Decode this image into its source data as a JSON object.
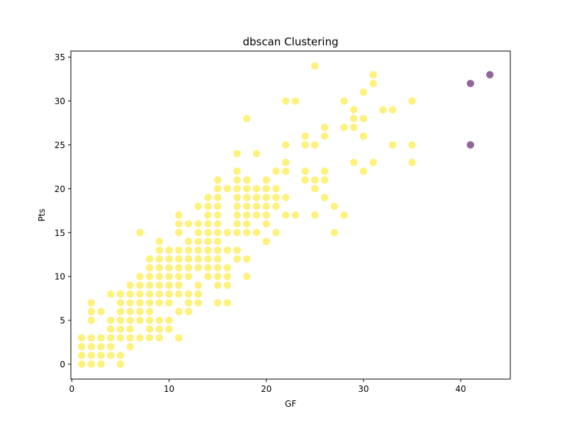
{
  "chart_data": {
    "type": "scatter",
    "title": "dbscan Clustering",
    "xlabel": "GF",
    "ylabel": "Pts",
    "xlim": [
      -0.1,
      45.1
    ],
    "ylim": [
      -1.7,
      35.7
    ],
    "xticks": [
      0,
      10,
      20,
      30,
      40
    ],
    "yticks": [
      0,
      5,
      10,
      15,
      20,
      25,
      30,
      35
    ],
    "grid": false,
    "legend": "none",
    "colors": {
      "cluster": "#fde725",
      "noise": "#440154"
    },
    "series": [
      {
        "cluster": 0,
        "points": [
          [
            1,
            0
          ],
          [
            1,
            1
          ],
          [
            1,
            2
          ],
          [
            1,
            3
          ],
          [
            2,
            0
          ],
          [
            2,
            1
          ],
          [
            2,
            2
          ],
          [
            2,
            3
          ],
          [
            2,
            5
          ],
          [
            2,
            6
          ],
          [
            2,
            7
          ],
          [
            3,
            0
          ],
          [
            3,
            1
          ],
          [
            3,
            2
          ],
          [
            3,
            3
          ],
          [
            3,
            6
          ],
          [
            4,
            1
          ],
          [
            4,
            2
          ],
          [
            4,
            3
          ],
          [
            4,
            4
          ],
          [
            4,
            5
          ],
          [
            4,
            8
          ],
          [
            5,
            0
          ],
          [
            5,
            1
          ],
          [
            5,
            3
          ],
          [
            5,
            4
          ],
          [
            5,
            5
          ],
          [
            5,
            6
          ],
          [
            5,
            7
          ],
          [
            5,
            8
          ],
          [
            6,
            2
          ],
          [
            6,
            3
          ],
          [
            6,
            4
          ],
          [
            6,
            5
          ],
          [
            6,
            6
          ],
          [
            6,
            7
          ],
          [
            6,
            8
          ],
          [
            6,
            9
          ],
          [
            7,
            3
          ],
          [
            7,
            5
          ],
          [
            7,
            6
          ],
          [
            7,
            7
          ],
          [
            7,
            8
          ],
          [
            7,
            9
          ],
          [
            7,
            10
          ],
          [
            7,
            15
          ],
          [
            8,
            3
          ],
          [
            8,
            4
          ],
          [
            8,
            5
          ],
          [
            8,
            6
          ],
          [
            8,
            7
          ],
          [
            8,
            8
          ],
          [
            8,
            9
          ],
          [
            8,
            10
          ],
          [
            8,
            11
          ],
          [
            8,
            12
          ],
          [
            9,
            3
          ],
          [
            9,
            4
          ],
          [
            9,
            5
          ],
          [
            9,
            7
          ],
          [
            9,
            8
          ],
          [
            9,
            9
          ],
          [
            9,
            10
          ],
          [
            9,
            11
          ],
          [
            9,
            12
          ],
          [
            9,
            13
          ],
          [
            9,
            14
          ],
          [
            10,
            4
          ],
          [
            10,
            5
          ],
          [
            10,
            7
          ],
          [
            10,
            8
          ],
          [
            10,
            9
          ],
          [
            10,
            10
          ],
          [
            10,
            11
          ],
          [
            10,
            12
          ],
          [
            10,
            13
          ],
          [
            11,
            3
          ],
          [
            11,
            6
          ],
          [
            11,
            8
          ],
          [
            11,
            9
          ],
          [
            11,
            10
          ],
          [
            11,
            11
          ],
          [
            11,
            12
          ],
          [
            11,
            13
          ],
          [
            11,
            15
          ],
          [
            11,
            16
          ],
          [
            11,
            17
          ],
          [
            12,
            6
          ],
          [
            12,
            7
          ],
          [
            12,
            8
          ],
          [
            12,
            10
          ],
          [
            12,
            11
          ],
          [
            12,
            12
          ],
          [
            12,
            13
          ],
          [
            12,
            14
          ],
          [
            12,
            16
          ],
          [
            13,
            7
          ],
          [
            13,
            8
          ],
          [
            13,
            9
          ],
          [
            13,
            11
          ],
          [
            13,
            12
          ],
          [
            13,
            13
          ],
          [
            13,
            14
          ],
          [
            13,
            15
          ],
          [
            13,
            16
          ],
          [
            13,
            18
          ],
          [
            14,
            10
          ],
          [
            14,
            11
          ],
          [
            14,
            12
          ],
          [
            14,
            13
          ],
          [
            14,
            14
          ],
          [
            14,
            15
          ],
          [
            14,
            16
          ],
          [
            14,
            17
          ],
          [
            14,
            18
          ],
          [
            14,
            19
          ],
          [
            15,
            7
          ],
          [
            15,
            9
          ],
          [
            15,
            10
          ],
          [
            15,
            11
          ],
          [
            15,
            12
          ],
          [
            15,
            13
          ],
          [
            15,
            14
          ],
          [
            15,
            15
          ],
          [
            15,
            16
          ],
          [
            15,
            17
          ],
          [
            15,
            18
          ],
          [
            15,
            19
          ],
          [
            15,
            20
          ],
          [
            15,
            21
          ],
          [
            16,
            7
          ],
          [
            16,
            9
          ],
          [
            16,
            10
          ],
          [
            16,
            11
          ],
          [
            16,
            13
          ],
          [
            16,
            15
          ],
          [
            16,
            20
          ],
          [
            17,
            12
          ],
          [
            17,
            13
          ],
          [
            17,
            15
          ],
          [
            17,
            16
          ],
          [
            17,
            17
          ],
          [
            17,
            18
          ],
          [
            17,
            19
          ],
          [
            17,
            20
          ],
          [
            17,
            21
          ],
          [
            17,
            22
          ],
          [
            17,
            24
          ],
          [
            18,
            10
          ],
          [
            18,
            12
          ],
          [
            18,
            15
          ],
          [
            18,
            16
          ],
          [
            18,
            17
          ],
          [
            18,
            18
          ],
          [
            18,
            19
          ],
          [
            18,
            20
          ],
          [
            18,
            21
          ],
          [
            18,
            28
          ],
          [
            19,
            15
          ],
          [
            19,
            17
          ],
          [
            19,
            18
          ],
          [
            19,
            19
          ],
          [
            19,
            20
          ],
          [
            19,
            24
          ],
          [
            20,
            14
          ],
          [
            20,
            16
          ],
          [
            20,
            17
          ],
          [
            20,
            18
          ],
          [
            20,
            19
          ],
          [
            20,
            20
          ],
          [
            20,
            21
          ],
          [
            21,
            15
          ],
          [
            21,
            18
          ],
          [
            21,
            19
          ],
          [
            21,
            20
          ],
          [
            21,
            22
          ],
          [
            22,
            17
          ],
          [
            22,
            19
          ],
          [
            22,
            22
          ],
          [
            22,
            23
          ],
          [
            22,
            25
          ],
          [
            22,
            30
          ],
          [
            23,
            17
          ],
          [
            23,
            30
          ],
          [
            24,
            21
          ],
          [
            24,
            22
          ],
          [
            24,
            25
          ],
          [
            24,
            26
          ],
          [
            25,
            17
          ],
          [
            25,
            20
          ],
          [
            25,
            21
          ],
          [
            25,
            25
          ],
          [
            25,
            34
          ],
          [
            26,
            19
          ],
          [
            26,
            21
          ],
          [
            26,
            22
          ],
          [
            26,
            26
          ],
          [
            26,
            27
          ],
          [
            27,
            15
          ],
          [
            27,
            18
          ],
          [
            28,
            17
          ],
          [
            28,
            27
          ],
          [
            28,
            30
          ],
          [
            29,
            23
          ],
          [
            29,
            27
          ],
          [
            29,
            28
          ],
          [
            29,
            29
          ],
          [
            30,
            22
          ],
          [
            30,
            26
          ],
          [
            30,
            28
          ],
          [
            30,
            31
          ],
          [
            31,
            23
          ],
          [
            31,
            32
          ],
          [
            31,
            33
          ],
          [
            32,
            29
          ],
          [
            33,
            25
          ],
          [
            33,
            29
          ],
          [
            35,
            23
          ],
          [
            35,
            25
          ],
          [
            35,
            30
          ]
        ]
      },
      {
        "cluster": -1,
        "points": [
          [
            41,
            25
          ],
          [
            41,
            32
          ],
          [
            43,
            33
          ]
        ]
      }
    ]
  }
}
